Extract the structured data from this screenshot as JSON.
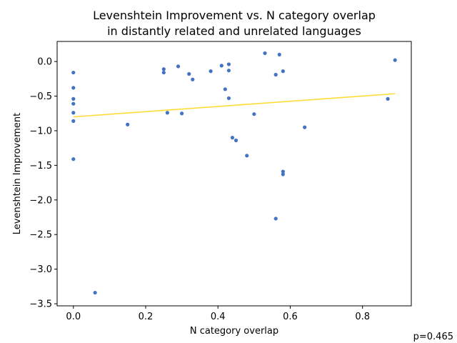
{
  "chart_data": {
    "type": "scatter",
    "title_line1": "Levenshtein Improvement vs. N category overlap",
    "title_line2": "in distantly related and unrelated languages",
    "xlabel": "N category overlap",
    "ylabel": "Levenshtein Improvement",
    "xlim": [
      -0.045,
      0.935
    ],
    "ylim": [
      -3.53,
      0.29
    ],
    "x_ticks": [
      0.0,
      0.2,
      0.4,
      0.6,
      0.8
    ],
    "x_tick_labels": [
      "0.0",
      "0.2",
      "0.4",
      "0.6",
      "0.8"
    ],
    "y_ticks": [
      0.0,
      -0.5,
      -1.0,
      -1.5,
      -2.0,
      -2.5,
      -3.0,
      -3.5
    ],
    "y_tick_labels": [
      "0.0",
      "−0.5",
      "−1.0",
      "−1.5",
      "−2.0",
      "−2.5",
      "−3.0",
      "−3.5"
    ],
    "grid": false,
    "point_color": "#4472c4",
    "line_color": "#fddc3a",
    "points": [
      {
        "x": 0.0,
        "y": -0.16
      },
      {
        "x": 0.0,
        "y": -0.38
      },
      {
        "x": 0.0,
        "y": -0.54
      },
      {
        "x": 0.0,
        "y": -0.61
      },
      {
        "x": 0.0,
        "y": -0.74
      },
      {
        "x": 0.0,
        "y": -0.86
      },
      {
        "x": 0.0,
        "y": -1.41
      },
      {
        "x": 0.06,
        "y": -3.34
      },
      {
        "x": 0.15,
        "y": -0.91
      },
      {
        "x": 0.25,
        "y": -0.11
      },
      {
        "x": 0.25,
        "y": -0.16
      },
      {
        "x": 0.26,
        "y": -0.74
      },
      {
        "x": 0.29,
        "y": -0.07
      },
      {
        "x": 0.3,
        "y": -0.75
      },
      {
        "x": 0.32,
        "y": -0.18
      },
      {
        "x": 0.33,
        "y": -0.26
      },
      {
        "x": 0.38,
        "y": -0.14
      },
      {
        "x": 0.41,
        "y": -0.06
      },
      {
        "x": 0.42,
        "y": -0.4
      },
      {
        "x": 0.43,
        "y": -0.04
      },
      {
        "x": 0.43,
        "y": -0.13
      },
      {
        "x": 0.43,
        "y": -0.53
      },
      {
        "x": 0.44,
        "y": -1.1
      },
      {
        "x": 0.45,
        "y": -1.14
      },
      {
        "x": 0.48,
        "y": -1.36
      },
      {
        "x": 0.5,
        "y": -0.76
      },
      {
        "x": 0.53,
        "y": 0.12
      },
      {
        "x": 0.56,
        "y": -0.19
      },
      {
        "x": 0.56,
        "y": -2.27
      },
      {
        "x": 0.57,
        "y": 0.1
      },
      {
        "x": 0.58,
        "y": -0.14
      },
      {
        "x": 0.58,
        "y": -1.59
      },
      {
        "x": 0.58,
        "y": -1.63
      },
      {
        "x": 0.64,
        "y": -0.95
      },
      {
        "x": 0.87,
        "y": -0.54
      },
      {
        "x": 0.89,
        "y": 0.02
      }
    ],
    "trend_line": {
      "x": [
        0.0,
        0.89
      ],
      "y": [
        -0.8,
        -0.465
      ]
    },
    "annotation": "p=0.465"
  }
}
